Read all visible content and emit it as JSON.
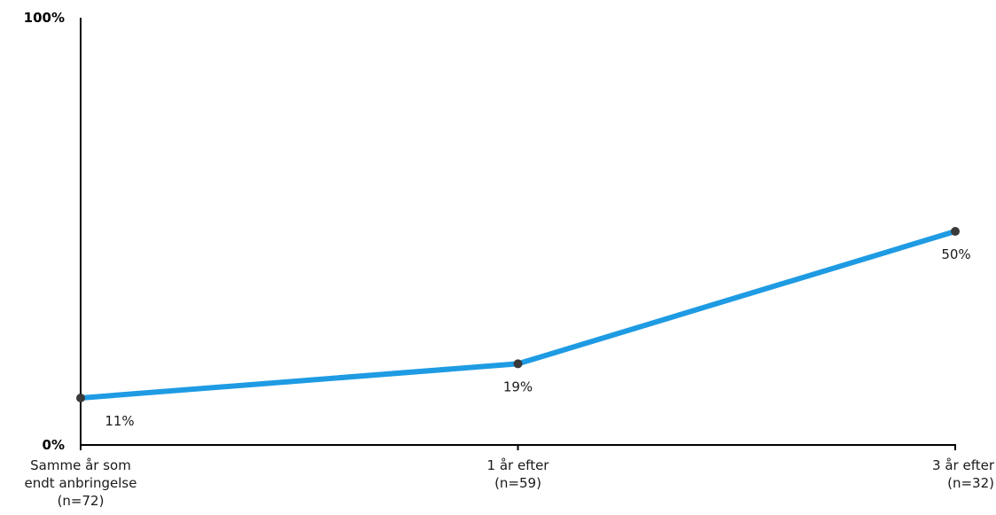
{
  "chart_data": {
    "type": "line",
    "title": "",
    "xlabel": "",
    "ylabel": "",
    "ylim": [
      0,
      100
    ],
    "grid": false,
    "y_tick_labels": [
      "0%",
      "100%"
    ],
    "categories": [
      [
        "Samme år som",
        "endt anbringelse",
        "(n=72)"
      ],
      [
        "1 år efter",
        "(n=59)"
      ],
      [
        "3 år efter",
        "(n=32)"
      ]
    ],
    "series": [
      {
        "values": [
          11,
          19,
          50
        ],
        "data_labels": [
          "11%",
          "19%",
          "50%"
        ],
        "color": "#1E9BE3",
        "marker_color": "#3A3A3A"
      }
    ]
  }
}
